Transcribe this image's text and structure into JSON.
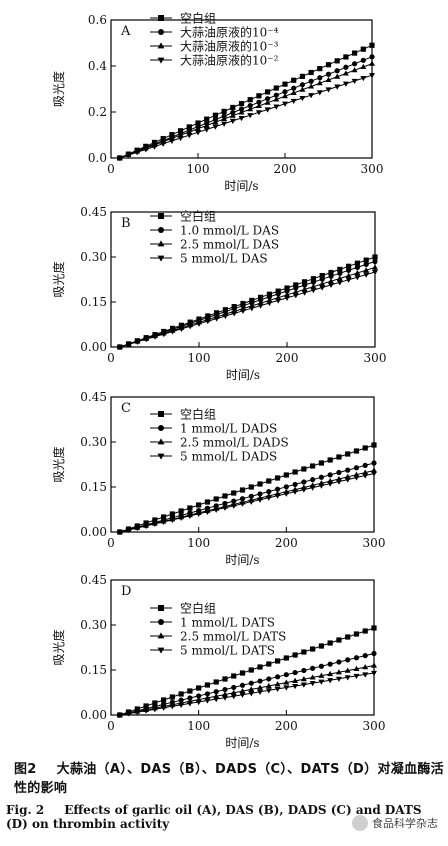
{
  "chart_data": [
    {
      "type": "line",
      "panel_label": "A",
      "xlabel": "时间/s",
      "ylabel": "吸光度",
      "xlim": [
        0,
        300
      ],
      "ylim": [
        0,
        0.6
      ],
      "xticks": [
        "0",
        "100",
        "200",
        "300"
      ],
      "yticks": [
        "0.0",
        "0.2",
        "0.4",
        "0.6"
      ],
      "x": [
        10,
        20,
        30,
        40,
        50,
        60,
        70,
        80,
        90,
        100,
        110,
        120,
        130,
        140,
        150,
        160,
        170,
        180,
        190,
        200,
        210,
        220,
        230,
        240,
        250,
        260,
        270,
        280,
        290,
        300
      ],
      "series": [
        {
          "name": "空白组",
          "marker": "square",
          "start": 0.0,
          "end": 0.49
        },
        {
          "name": "大蒜油原液的10⁻⁴",
          "marker": "circle",
          "start": 0.0,
          "end": 0.44
        },
        {
          "name": "大蒜油原液的10⁻³",
          "marker": "triangle-up",
          "start": 0.0,
          "end": 0.41
        },
        {
          "name": "大蒜油原液的10⁻²",
          "marker": "triangle-down",
          "start": 0.0,
          "end": 0.36
        }
      ]
    },
    {
      "type": "line",
      "panel_label": "B",
      "xlabel": "时间/s",
      "ylabel": "吸光度",
      "xlim": [
        0,
        300
      ],
      "ylim": [
        0,
        0.45
      ],
      "xticks": [
        "0",
        "100",
        "200",
        "300"
      ],
      "yticks": [
        "0.00",
        "0.15",
        "0.30",
        "0.45"
      ],
      "x": [
        10,
        20,
        30,
        40,
        50,
        60,
        70,
        80,
        90,
        100,
        110,
        120,
        130,
        140,
        150,
        160,
        170,
        180,
        190,
        200,
        210,
        220,
        230,
        240,
        250,
        260,
        270,
        280,
        290,
        300
      ],
      "series": [
        {
          "name": "空白组",
          "marker": "square",
          "start": 0.0,
          "end": 0.3
        },
        {
          "name": "1.0 mmol/L DAS",
          "marker": "circle",
          "start": 0.0,
          "end": 0.285
        },
        {
          "name": "2.5 mmol/L DAS",
          "marker": "triangle-up",
          "start": 0.0,
          "end": 0.265
        },
        {
          "name": "5 mmol/L DAS",
          "marker": "triangle-down",
          "start": 0.0,
          "end": 0.25
        }
      ]
    },
    {
      "type": "line",
      "panel_label": "C",
      "xlabel": "时间/s",
      "ylabel": "吸光度",
      "xlim": [
        0,
        300
      ],
      "ylim": [
        0,
        0.45
      ],
      "xticks": [
        "0",
        "100",
        "200",
        "300"
      ],
      "yticks": [
        "0.00",
        "0.15",
        "0.30",
        "0.45"
      ],
      "x": [
        10,
        20,
        30,
        40,
        50,
        60,
        70,
        80,
        90,
        100,
        110,
        120,
        130,
        140,
        150,
        160,
        170,
        180,
        190,
        200,
        210,
        220,
        230,
        240,
        250,
        260,
        270,
        280,
        290,
        300
      ],
      "series": [
        {
          "name": "空白组",
          "marker": "square",
          "start": 0.0,
          "end": 0.29
        },
        {
          "name": "1 mmol/L DADS",
          "marker": "circle",
          "start": 0.0,
          "end": 0.23
        },
        {
          "name": "2.5 mmol/L DADS",
          "marker": "triangle-up",
          "start": 0.0,
          "end": 0.205
        },
        {
          "name": "5 mmol/L DADS",
          "marker": "triangle-down",
          "start": 0.0,
          "end": 0.195
        }
      ]
    },
    {
      "type": "line",
      "panel_label": "D",
      "xlabel": "时间/s",
      "ylabel": "吸光度",
      "xlim": [
        0,
        300
      ],
      "ylim": [
        0,
        0.45
      ],
      "xticks": [
        "0",
        "100",
        "200",
        "300"
      ],
      "yticks": [
        "0.00",
        "0.15",
        "0.30",
        "0.45"
      ],
      "x": [
        10,
        20,
        30,
        40,
        50,
        60,
        70,
        80,
        90,
        100,
        110,
        120,
        130,
        140,
        150,
        160,
        170,
        180,
        190,
        200,
        210,
        220,
        230,
        240,
        250,
        260,
        270,
        280,
        290,
        300
      ],
      "series": [
        {
          "name": "空白组",
          "marker": "square",
          "start": 0.0,
          "end": 0.29
        },
        {
          "name": "1 mmol/L DATS",
          "marker": "circle",
          "start": 0.0,
          "end": 0.205
        },
        {
          "name": "2.5 mmol/L DATS",
          "marker": "triangle-up",
          "start": 0.0,
          "end": 0.165
        },
        {
          "name": "5 mmol/L DATS",
          "marker": "triangle-down",
          "start": 0.0,
          "end": 0.14
        }
      ]
    }
  ],
  "caption": {
    "cn_label": "图2",
    "cn_text": "大蒜油（A）、DAS（B）、DADS（C）、DATS（D）对凝血酶活性的影响",
    "en_label": "Fig. 2",
    "en_text": "Effects of garlic oil (A), DAS (B), DADS (C) and DATS (D) on thrombin activity"
  },
  "watermark": "食品科学杂志"
}
